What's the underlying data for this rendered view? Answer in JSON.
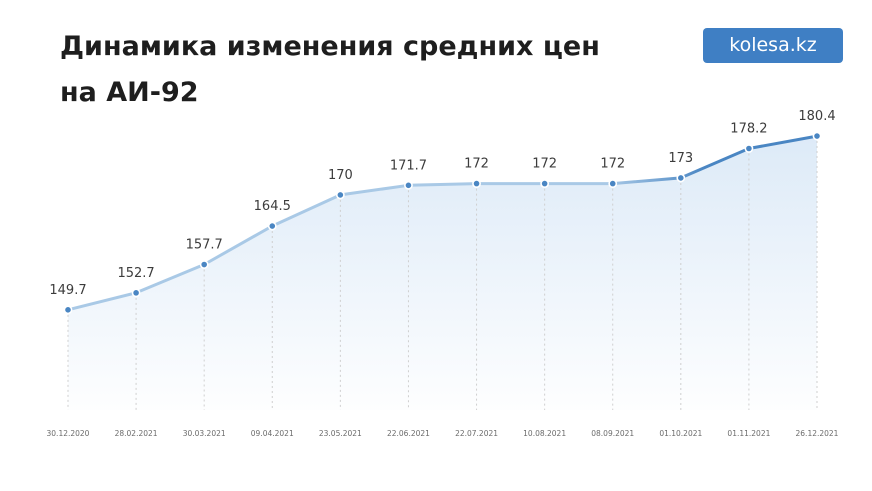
{
  "header": {
    "title_line1": "Динамика изменения средних цен",
    "title_line2": "на АИ-92",
    "brand": "kolesa.kz"
  },
  "colors": {
    "line_light": "#a9c9e6",
    "line_dark": "#4a86c3",
    "point": "#4a86c3",
    "area": "#dbe9f7",
    "grid": "#cfcfcf"
  },
  "chart_data": {
    "type": "line",
    "categories": [
      "30.12.2020",
      "28.02.2021",
      "30.03.2021",
      "09.04.2021",
      "23.05.2021",
      "22.06.2021",
      "22.07.2021",
      "10.08.2021",
      "08.09.2021",
      "01.10.2021",
      "01.11.2021",
      "26.12.2021"
    ],
    "labels": [
      "149.7",
      "152.7",
      "157.7",
      "164.5",
      "170",
      "171.7",
      "172",
      "172",
      "172",
      "173",
      "178.2",
      "180.4"
    ],
    "values": [
      149.7,
      152.7,
      157.7,
      164.5,
      170,
      171.7,
      172,
      172,
      172,
      173,
      178.2,
      180.4
    ],
    "title": "Динамика изменения средних цен на АИ-92",
    "xlabel": "",
    "ylabel": "",
    "ylim": [
      132,
      182
    ],
    "grid": "vertical-dotted",
    "legend": "none"
  }
}
